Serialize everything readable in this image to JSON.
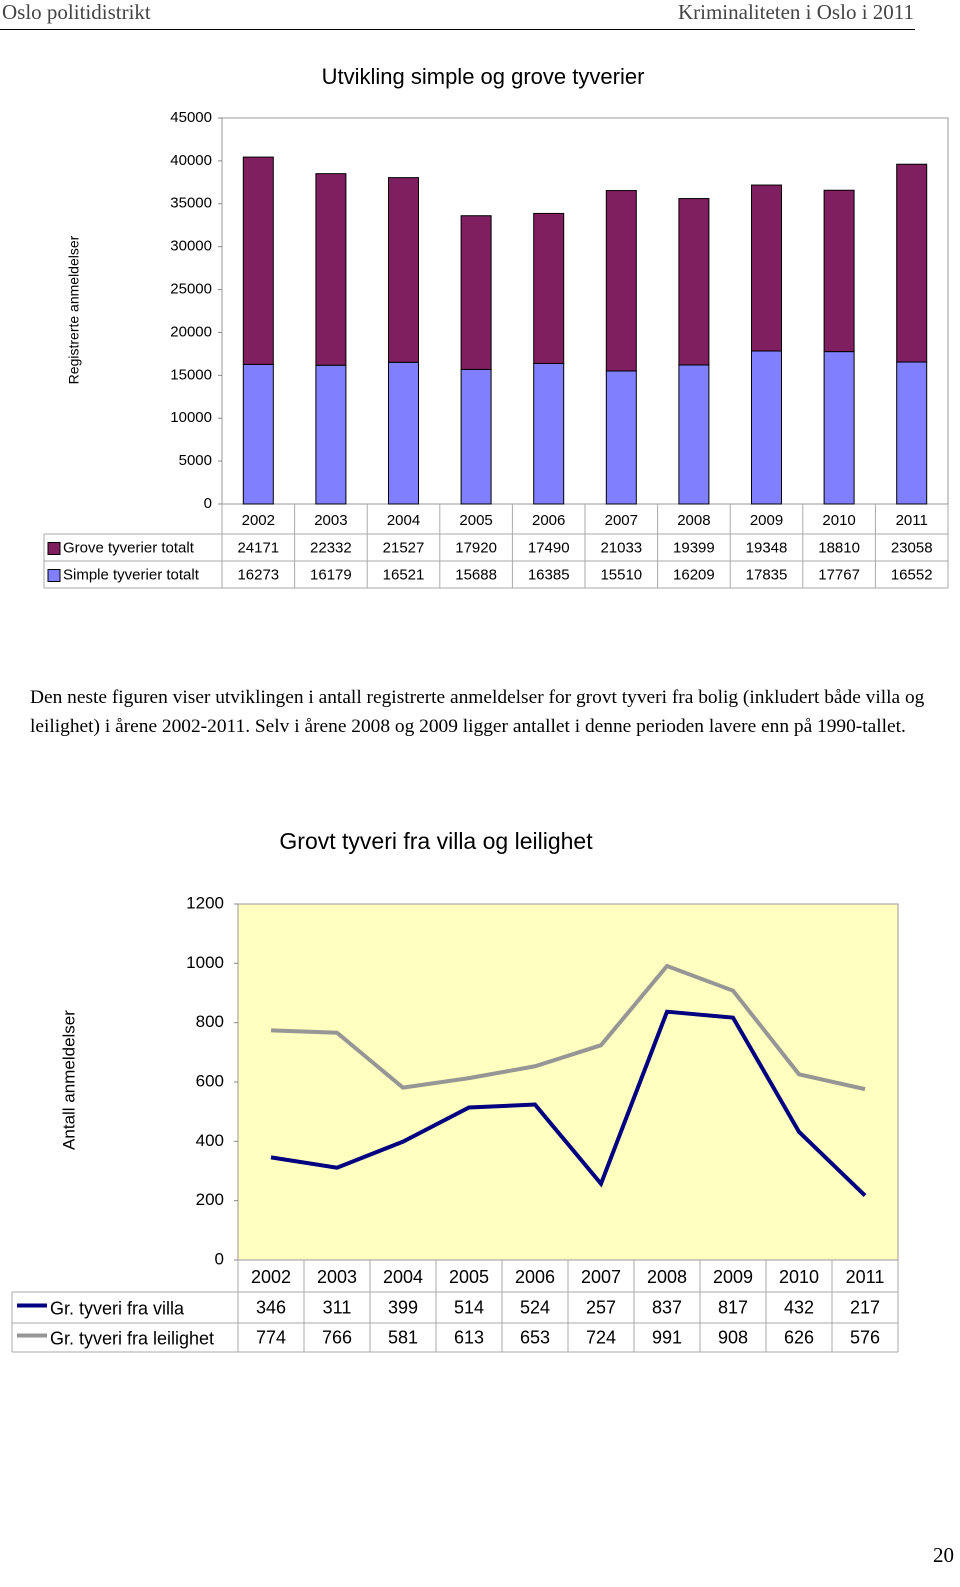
{
  "header": {
    "left": "Oslo politidistrikt",
    "right": "Kriminaliteten i Oslo i 2011"
  },
  "chart_data": [
    {
      "type": "bar",
      "stacked": true,
      "title": "Utvikling simple og grove tyverier",
      "y_label": "Registrerte anmeldelser",
      "categories": [
        "2002",
        "2003",
        "2004",
        "2005",
        "2006",
        "2007",
        "2008",
        "2009",
        "2010",
        "2011"
      ],
      "series": [
        {
          "name": "Grove tyverier totalt",
          "color": "#7f1f5f",
          "values": [
            24171,
            22332,
            21527,
            17920,
            17490,
            21033,
            19399,
            19348,
            18810,
            23058
          ]
        },
        {
          "name": "Simple tyverier totalt",
          "color": "#8080ff",
          "values": [
            16273,
            16179,
            16521,
            15688,
            16385,
            15510,
            16209,
            17835,
            17767,
            16552
          ]
        }
      ],
      "ylim": [
        0,
        45000
      ],
      "yticks": [
        0,
        5000,
        10000,
        15000,
        20000,
        25000,
        30000,
        35000,
        40000,
        45000
      ],
      "data_table": true
    },
    {
      "type": "line",
      "title": "Grovt tyveri fra villa og leilighet",
      "y_label": "Antall anmeldelser",
      "categories": [
        "2002",
        "2003",
        "2004",
        "2005",
        "2006",
        "2007",
        "2008",
        "2009",
        "2010",
        "2011"
      ],
      "series": [
        {
          "name": "Gr. tyveri fra villa",
          "color": "#000080",
          "values": [
            346,
            311,
            399,
            514,
            524,
            257,
            837,
            817,
            432,
            217
          ]
        },
        {
          "name": "Gr. tyveri fra leilighet",
          "color": "#969696",
          "values": [
            774,
            766,
            581,
            613,
            653,
            724,
            991,
            908,
            626,
            576
          ]
        }
      ],
      "ylim": [
        0,
        1200
      ],
      "yticks": [
        0,
        200,
        400,
        600,
        800,
        1000,
        1200
      ],
      "plot_background": "#ffffc0",
      "data_table": true
    }
  ],
  "paragraph": "Den neste figuren viser utviklingen i antall registrerte anmeldelser for grovt tyveri fra bolig (inkludert både villa og leilighet) i årene 2002-2011. Selv i årene 2008 og 2009 ligger antallet i denne perioden lavere enn på 1990-tallet.",
  "page_number": "20"
}
